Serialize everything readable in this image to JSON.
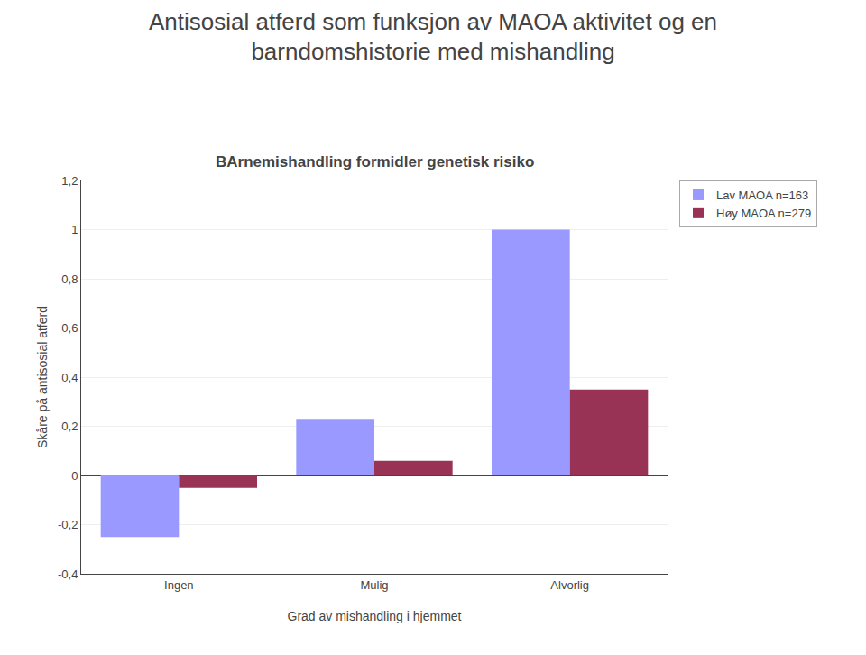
{
  "chart_data": {
    "type": "bar",
    "title": "Antisosial atferd som funksjon av MAOA aktivitet og en\nbarndomshistorie med mishandling",
    "subtitle": "BArnemishandling formidler genetisk risiko",
    "xlabel": "Grad av mishandling i hjemmet",
    "ylabel": "Skåre på antisosial atferd",
    "categories": [
      "Ingen",
      "Mulig",
      "Alvorlig"
    ],
    "series": [
      {
        "name": "Lav MAOA n=163",
        "color": "#9999FF",
        "values": [
          -0.25,
          0.23,
          1.0
        ]
      },
      {
        "name": "Høy MAOA n=279",
        "color": "#993355",
        "values": [
          -0.05,
          0.06,
          0.35
        ]
      }
    ],
    "ylim": [
      -0.4,
      1.2
    ],
    "yticks": [
      {
        "value": -0.4,
        "label": "-0,4"
      },
      {
        "value": -0.2,
        "label": "-0,2"
      },
      0,
      {
        "value": 0.2,
        "label": "0,2"
      },
      {
        "value": 0.4,
        "label": "0,4"
      },
      {
        "value": 0.6,
        "label": "0,6"
      },
      {
        "value": 0.8,
        "label": "0,8"
      },
      1,
      {
        "value": 1.2,
        "label": "1,2"
      }
    ],
    "grid": true,
    "legend": "right"
  }
}
